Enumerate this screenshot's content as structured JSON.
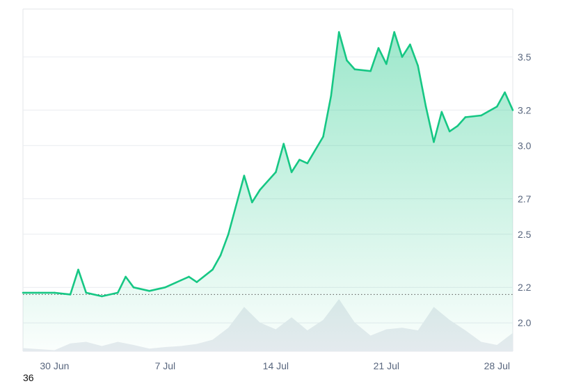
{
  "corner_label": "36",
  "colors": {
    "up_line": "#16c784",
    "down_line": "#ea3943",
    "grid": "#e9ecf0",
    "frame": "#e3e6ea",
    "baseline_dots": "#555555",
    "volume_fill": "#e8ebf0",
    "tick_text": "#58667e"
  },
  "chart_data": {
    "type": "area",
    "title": "",
    "xlabel": "",
    "ylabel": "",
    "x_range": [
      "2024-06-28",
      "2024-07-29"
    ],
    "ylim": [
      1.84,
      3.77
    ],
    "x_ticks": [
      "30 Jun",
      "7 Jul",
      "14 Jul",
      "21 Jul",
      "28 Jul"
    ],
    "x_tick_dates": [
      "2024-06-30",
      "2024-07-07",
      "2024-07-14",
      "2024-07-21",
      "2024-07-28"
    ],
    "y_ticks": [
      2.0,
      2.2,
      2.5,
      2.7,
      3.0,
      3.2,
      3.5
    ],
    "y_tick_labels": [
      "2.0",
      "2.2",
      "2.5",
      "2.7",
      "3.0",
      "3.2",
      "3.5"
    ],
    "baseline": 2.16,
    "grid": true,
    "legend": "none",
    "series": [
      {
        "values": [
          [
            "2024-06-28",
            2.17
          ],
          [
            "2024-06-29",
            2.17
          ],
          [
            "2024-06-30",
            2.17
          ],
          [
            "2024-07-01",
            2.16
          ],
          [
            "2024-07-01T12:00",
            2.3
          ],
          [
            "2024-07-02",
            2.17
          ],
          [
            "2024-07-03",
            2.15
          ],
          [
            "2024-07-04",
            2.17
          ],
          [
            "2024-07-04T12:00",
            2.26
          ],
          [
            "2024-07-05",
            2.2
          ],
          [
            "2024-07-06",
            2.18
          ],
          [
            "2024-07-07",
            2.2
          ],
          [
            "2024-07-08",
            2.24
          ],
          [
            "2024-07-08T12:00",
            2.26
          ],
          [
            "2024-07-09",
            2.23
          ],
          [
            "2024-07-10",
            2.3
          ],
          [
            "2024-07-10T12:00",
            2.38
          ],
          [
            "2024-07-11",
            2.5
          ],
          [
            "2024-07-12",
            2.83
          ],
          [
            "2024-07-12T12:00",
            2.68
          ],
          [
            "2024-07-13",
            2.75
          ],
          [
            "2024-07-14",
            2.85
          ],
          [
            "2024-07-14T12:00",
            3.01
          ],
          [
            "2024-07-15",
            2.85
          ],
          [
            "2024-07-15T12:00",
            2.92
          ],
          [
            "2024-07-16",
            2.9
          ],
          [
            "2024-07-17",
            3.05
          ],
          [
            "2024-07-17T12:00",
            3.28
          ],
          [
            "2024-07-18",
            3.64
          ],
          [
            "2024-07-18T12:00",
            3.48
          ],
          [
            "2024-07-19",
            3.43
          ],
          [
            "2024-07-20",
            3.42
          ],
          [
            "2024-07-20T12:00",
            3.55
          ],
          [
            "2024-07-21",
            3.46
          ],
          [
            "2024-07-21T12:00",
            3.64
          ],
          [
            "2024-07-22",
            3.5
          ],
          [
            "2024-07-22T12:00",
            3.57
          ],
          [
            "2024-07-23",
            3.45
          ],
          [
            "2024-07-23T12:00",
            3.22
          ],
          [
            "2024-07-24",
            3.02
          ],
          [
            "2024-07-24T12:00",
            3.19
          ],
          [
            "2024-07-25",
            3.08
          ],
          [
            "2024-07-25T12:00",
            3.11
          ],
          [
            "2024-07-26",
            3.16
          ],
          [
            "2024-07-27",
            3.17
          ],
          [
            "2024-07-28",
            3.22
          ],
          [
            "2024-07-28T12:00",
            3.3
          ],
          [
            "2024-07-29",
            3.2
          ]
        ]
      }
    ],
    "volume": {
      "type": "area",
      "values": [
        [
          "2024-06-28",
          0.06
        ],
        [
          "2024-06-30",
          0.02
        ],
        [
          "2024-07-01",
          0.15
        ],
        [
          "2024-07-02",
          0.18
        ],
        [
          "2024-07-03",
          0.1
        ],
        [
          "2024-07-04",
          0.18
        ],
        [
          "2024-07-05",
          0.12
        ],
        [
          "2024-07-06",
          0.05
        ],
        [
          "2024-07-07",
          0.08
        ],
        [
          "2024-07-08",
          0.1
        ],
        [
          "2024-07-09",
          0.14
        ],
        [
          "2024-07-10",
          0.22
        ],
        [
          "2024-07-11",
          0.45
        ],
        [
          "2024-07-12",
          0.85
        ],
        [
          "2024-07-13",
          0.55
        ],
        [
          "2024-07-14",
          0.42
        ],
        [
          "2024-07-15",
          0.65
        ],
        [
          "2024-07-16",
          0.4
        ],
        [
          "2024-07-17",
          0.6
        ],
        [
          "2024-07-18",
          1.0
        ],
        [
          "2024-07-19",
          0.55
        ],
        [
          "2024-07-20",
          0.3
        ],
        [
          "2024-07-21",
          0.42
        ],
        [
          "2024-07-22",
          0.45
        ],
        [
          "2024-07-23",
          0.4
        ],
        [
          "2024-07-24",
          0.85
        ],
        [
          "2024-07-25",
          0.6
        ],
        [
          "2024-07-26",
          0.4
        ],
        [
          "2024-07-27",
          0.18
        ],
        [
          "2024-07-28",
          0.12
        ],
        [
          "2024-07-29",
          0.35
        ]
      ]
    }
  }
}
